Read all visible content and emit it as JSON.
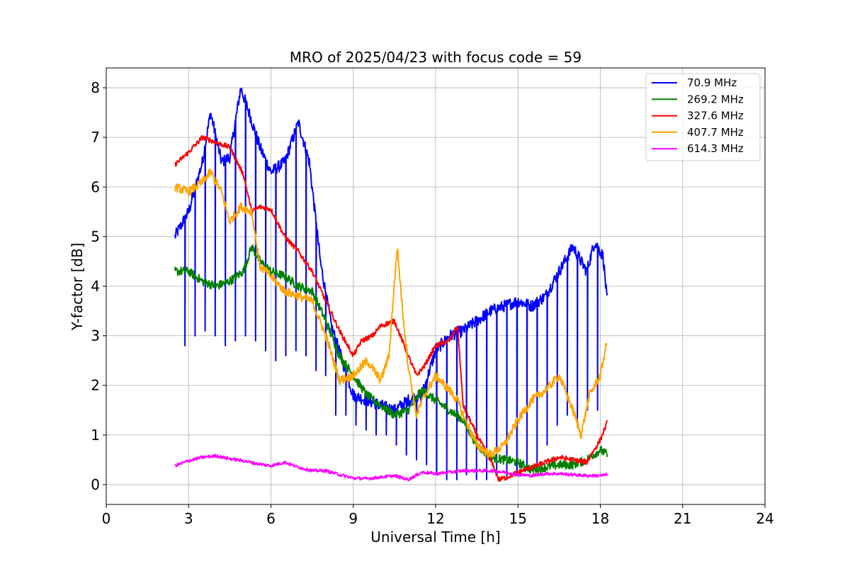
{
  "chart_data": {
    "type": "line",
    "title": "MRO of 2025/04/23 with focus code = 59",
    "xlabel": "Universal Time [h]",
    "ylabel": "Y-factor [dB]",
    "xlim": [
      0,
      24
    ],
    "ylim": [
      -0.4,
      8.4
    ],
    "xticks": [
      0,
      3,
      6,
      9,
      12,
      15,
      18,
      21,
      24
    ],
    "xtick_labels": [
      "0",
      "3",
      "6",
      "9",
      "12",
      "15",
      "18",
      "21",
      "24"
    ],
    "yticks": [
      0,
      1,
      2,
      3,
      4,
      5,
      6,
      7,
      8
    ],
    "ytick_labels": [
      "0",
      "1",
      "2",
      "3",
      "4",
      "5",
      "6",
      "7",
      "8"
    ],
    "grid": true,
    "legend_position": "top-right",
    "series": [
      {
        "name": " 70.9 MHz",
        "color": "#0000ff",
        "x": [
          2.5,
          3.0,
          3.5,
          3.8,
          4.2,
          4.5,
          4.9,
          5.2,
          5.6,
          6.0,
          6.5,
          7.0,
          7.4,
          7.8,
          8.2,
          8.6,
          9.0,
          9.5,
          10.0,
          10.5,
          11.0,
          11.5,
          12.0,
          12.5,
          13.0,
          13.5,
          14.0,
          14.5,
          15.0,
          15.5,
          16.0,
          16.5,
          17.0,
          17.5,
          17.8,
          18.1,
          18.25
        ],
        "y": [
          5.0,
          5.5,
          6.5,
          7.5,
          6.5,
          6.6,
          8.0,
          7.5,
          6.8,
          6.3,
          6.5,
          7.3,
          6.5,
          4.5,
          3.2,
          2.5,
          1.8,
          1.7,
          1.6,
          1.5,
          1.7,
          1.8,
          2.7,
          3.0,
          3.1,
          3.3,
          3.5,
          3.6,
          3.7,
          3.6,
          3.8,
          4.3,
          4.8,
          4.3,
          4.9,
          4.6,
          3.7
        ],
        "dip_values": [
          2.8,
          2.8,
          3.0,
          3.1,
          3.0,
          2.8,
          2.9,
          3.0,
          2.9,
          2.7,
          2.5,
          2.6,
          2.7,
          2.6,
          2.3,
          2.2,
          1.4,
          1.4,
          1.2,
          1.1,
          1.0,
          1.0,
          0.8,
          0.6,
          0.5,
          0.4,
          0.2,
          0.1,
          0.1,
          0.2,
          0.1,
          0.1,
          0.2,
          0.1,
          0.2,
          0.3,
          0.4,
          0.8,
          1.2,
          1.4,
          1.2,
          1.5,
          1.5
        ]
      },
      {
        "name": "269.2 MHz",
        "color": "#008000",
        "x": [
          2.5,
          3.0,
          3.5,
          4.0,
          4.5,
          5.0,
          5.3,
          5.6,
          6.0,
          6.5,
          7.0,
          7.5,
          8.0,
          8.5,
          9.0,
          9.5,
          10.0,
          10.5,
          11.0,
          11.5,
          12.0,
          12.5,
          13.0,
          13.5,
          14.0,
          14.5,
          15.0,
          15.5,
          16.0,
          16.5,
          17.0,
          17.5,
          18.0,
          18.25
        ],
        "y": [
          4.3,
          4.3,
          4.1,
          4.0,
          4.1,
          4.3,
          4.8,
          4.5,
          4.3,
          4.2,
          4.0,
          3.9,
          3.3,
          2.6,
          2.2,
          1.8,
          1.6,
          1.4,
          1.5,
          1.9,
          1.7,
          1.5,
          1.3,
          0.8,
          0.55,
          0.5,
          0.45,
          0.3,
          0.35,
          0.4,
          0.4,
          0.5,
          0.7,
          0.6
        ]
      },
      {
        "name": "327.6 MHz",
        "color": "#ff0000",
        "x": [
          2.5,
          3.0,
          3.5,
          4.0,
          4.5,
          5.0,
          5.3,
          5.6,
          6.0,
          6.5,
          7.0,
          7.5,
          8.0,
          8.5,
          9.0,
          9.3,
          9.7,
          10.0,
          10.5,
          11.0,
          11.3,
          11.6,
          12.0,
          12.5,
          12.8,
          13.0,
          13.5,
          14.0,
          14.3,
          14.6,
          15.0,
          15.5,
          16.0,
          16.5,
          17.0,
          17.5,
          18.0,
          18.25
        ],
        "y": [
          6.45,
          6.7,
          7.0,
          6.9,
          6.8,
          6.25,
          5.5,
          5.6,
          5.55,
          5.0,
          4.7,
          4.3,
          3.7,
          3.1,
          2.6,
          2.9,
          3.0,
          3.2,
          3.3,
          2.6,
          2.2,
          2.4,
          2.8,
          2.9,
          3.2,
          1.6,
          1.0,
          0.5,
          0.1,
          0.15,
          0.25,
          0.35,
          0.45,
          0.55,
          0.5,
          0.45,
          0.9,
          1.25
        ]
      },
      {
        "name": "407.7 MHz",
        "color": "#ffa500",
        "x": [
          2.5,
          3.0,
          3.5,
          3.8,
          4.2,
          4.5,
          4.9,
          5.3,
          5.6,
          6.0,
          6.5,
          7.0,
          7.5,
          8.0,
          8.5,
          9.0,
          9.5,
          10.0,
          10.3,
          10.6,
          10.8,
          11.0,
          11.3,
          11.6,
          12.0,
          12.5,
          12.8,
          13.0,
          13.5,
          14.0,
          14.5,
          15.0,
          15.5,
          16.0,
          16.5,
          17.0,
          17.3,
          17.6,
          18.0,
          18.25
        ],
        "y": [
          6.0,
          5.9,
          6.1,
          6.3,
          5.9,
          5.3,
          5.6,
          5.5,
          4.4,
          4.2,
          3.9,
          3.8,
          3.7,
          3.0,
          2.1,
          2.2,
          2.5,
          2.1,
          2.6,
          4.8,
          3.5,
          2.4,
          1.4,
          1.8,
          2.2,
          1.9,
          1.7,
          1.4,
          0.8,
          0.6,
          0.8,
          1.3,
          1.7,
          1.9,
          2.2,
          1.5,
          1.0,
          1.8,
          2.2,
          2.9
        ]
      },
      {
        "name": "614.3 MHz",
        "color": "#ff00ff",
        "x": [
          2.5,
          3.0,
          3.5,
          4.0,
          4.5,
          5.0,
          5.5,
          6.0,
          6.5,
          7.0,
          7.5,
          8.0,
          8.5,
          9.0,
          9.5,
          10.0,
          10.5,
          11.0,
          11.5,
          12.0,
          12.5,
          13.0,
          13.5,
          14.0,
          14.5,
          15.0,
          15.5,
          16.0,
          16.5,
          17.0,
          17.5,
          18.0,
          18.25
        ],
        "y": [
          0.38,
          0.48,
          0.55,
          0.58,
          0.52,
          0.48,
          0.42,
          0.38,
          0.45,
          0.35,
          0.28,
          0.28,
          0.2,
          0.13,
          0.12,
          0.15,
          0.18,
          0.1,
          0.25,
          0.22,
          0.25,
          0.28,
          0.28,
          0.28,
          0.25,
          0.2,
          0.18,
          0.22,
          0.22,
          0.2,
          0.18,
          0.18,
          0.2
        ]
      }
    ]
  }
}
